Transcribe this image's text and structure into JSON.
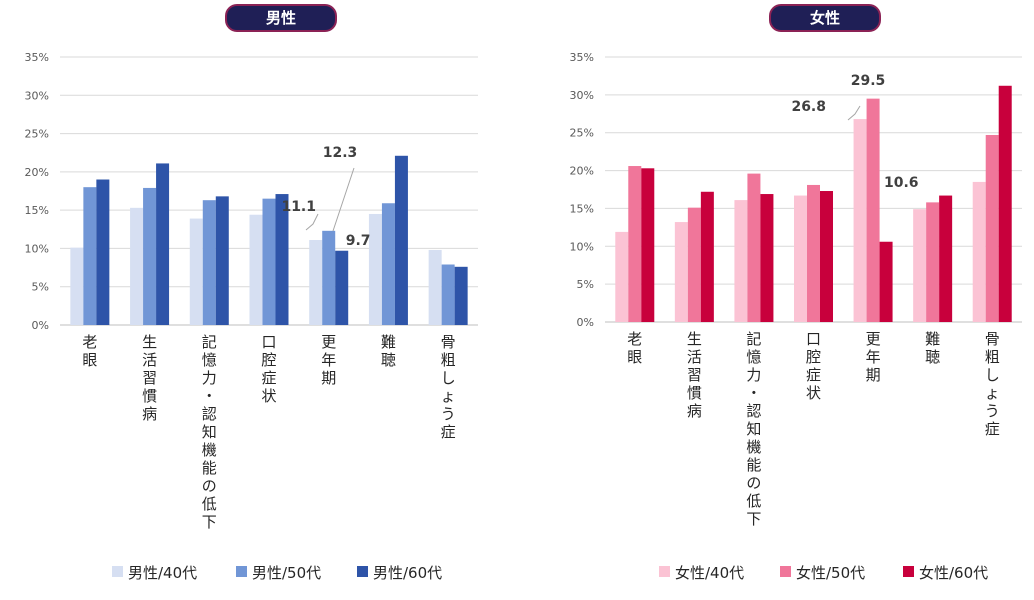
{
  "chart_data": [
    {
      "type": "bar",
      "title": "男性",
      "categories": [
        "老眼",
        "生活習慣病",
        "記憶力・認知機能の低下",
        "口腔症状",
        "更年期",
        "難聴",
        "骨粗しょう症"
      ],
      "series": [
        {
          "name": "男性/40代",
          "color": "#d6dff2",
          "values": [
            10.1,
            15.3,
            13.9,
            14.4,
            11.1,
            14.5,
            9.8
          ]
        },
        {
          "name": "男性/50代",
          "color": "#7196d6",
          "values": [
            18.0,
            17.9,
            16.3,
            16.5,
            12.3,
            15.9,
            7.9
          ]
        },
        {
          "name": "男性/60代",
          "color": "#2e54a8",
          "values": [
            19.0,
            21.1,
            16.8,
            17.1,
            9.7,
            22.1,
            7.6
          ]
        }
      ],
      "data_labels": [
        {
          "category_index": 4,
          "series_index": 0,
          "text": "11.1"
        },
        {
          "category_index": 4,
          "series_index": 1,
          "text": "12.3"
        },
        {
          "category_index": 4,
          "series_index": 2,
          "text": "9.7"
        }
      ],
      "yticks": [
        "0%",
        "5%",
        "10%",
        "15%",
        "20%",
        "25%",
        "30%",
        "35%"
      ],
      "ylim": [
        0,
        35
      ],
      "xlabel": "",
      "ylabel": "",
      "grid": true,
      "legend": "bottom"
    },
    {
      "type": "bar",
      "title": "女性",
      "categories": [
        "老眼",
        "生活習慣病",
        "記憶力・認知機能の低下",
        "口腔症状",
        "更年期",
        "難聴",
        "骨粗しょう症"
      ],
      "series": [
        {
          "name": "女性/40代",
          "color": "#fbc3d4",
          "values": [
            11.9,
            13.2,
            16.1,
            16.7,
            26.8,
            14.9,
            18.5
          ]
        },
        {
          "name": "女性/50代",
          "color": "#f0769a",
          "values": [
            20.6,
            15.1,
            19.6,
            18.1,
            29.5,
            15.8,
            24.7
          ]
        },
        {
          "name": "女性/60代",
          "color": "#c8003c",
          "values": [
            20.3,
            17.2,
            16.9,
            17.3,
            10.6,
            16.7,
            31.2
          ]
        }
      ],
      "data_labels": [
        {
          "category_index": 4,
          "series_index": 0,
          "text": "26.8"
        },
        {
          "category_index": 4,
          "series_index": 1,
          "text": "29.5"
        },
        {
          "category_index": 4,
          "series_index": 2,
          "text": "10.6"
        }
      ],
      "yticks": [
        "0%",
        "5%",
        "10%",
        "15%",
        "20%",
        "25%",
        "30%",
        "35%"
      ],
      "ylim": [
        0,
        35
      ],
      "xlabel": "",
      "ylabel": "",
      "grid": true,
      "legend": "bottom"
    }
  ]
}
